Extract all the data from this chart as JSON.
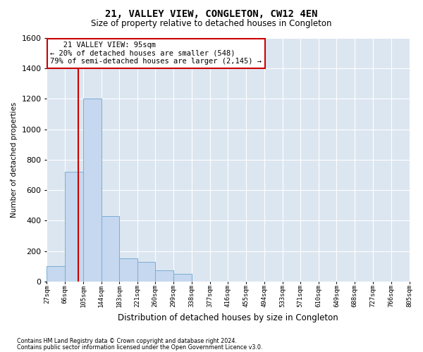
{
  "title": "21, VALLEY VIEW, CONGLETON, CW12 4EN",
  "subtitle": "Size of property relative to detached houses in Congleton",
  "xlabel": "Distribution of detached houses by size in Congleton",
  "ylabel": "Number of detached properties",
  "footer_line1": "Contains HM Land Registry data © Crown copyright and database right 2024.",
  "footer_line2": "Contains public sector information licensed under the Open Government Licence v3.0.",
  "annotation_title": "21 VALLEY VIEW: 95sqm",
  "annotation_line1": "← 20% of detached houses are smaller (548)",
  "annotation_line2": "79% of semi-detached houses are larger (2,145) →",
  "property_size_sqm": 95,
  "bin_edges": [
    27,
    66,
    105,
    144,
    183,
    221,
    260,
    299,
    338,
    377,
    416,
    455,
    494,
    533,
    571,
    610,
    649,
    688,
    727,
    766,
    805
  ],
  "bin_counts": [
    100,
    720,
    1200,
    430,
    150,
    130,
    75,
    50,
    0,
    0,
    0,
    0,
    0,
    0,
    0,
    0,
    0,
    0,
    0,
    0
  ],
  "bar_color": "#c5d8ef",
  "bar_edge_color": "#7aadd4",
  "vline_color": "#cc0000",
  "annotation_box_edge_color": "#cc0000",
  "annotation_box_face_color": "#ffffff",
  "background_color": "#dce6f1",
  "grid_color": "#ffffff",
  "fig_background": "#ffffff",
  "ylim": [
    0,
    1600
  ],
  "yticks": [
    0,
    200,
    400,
    600,
    800,
    1000,
    1200,
    1400,
    1600
  ]
}
